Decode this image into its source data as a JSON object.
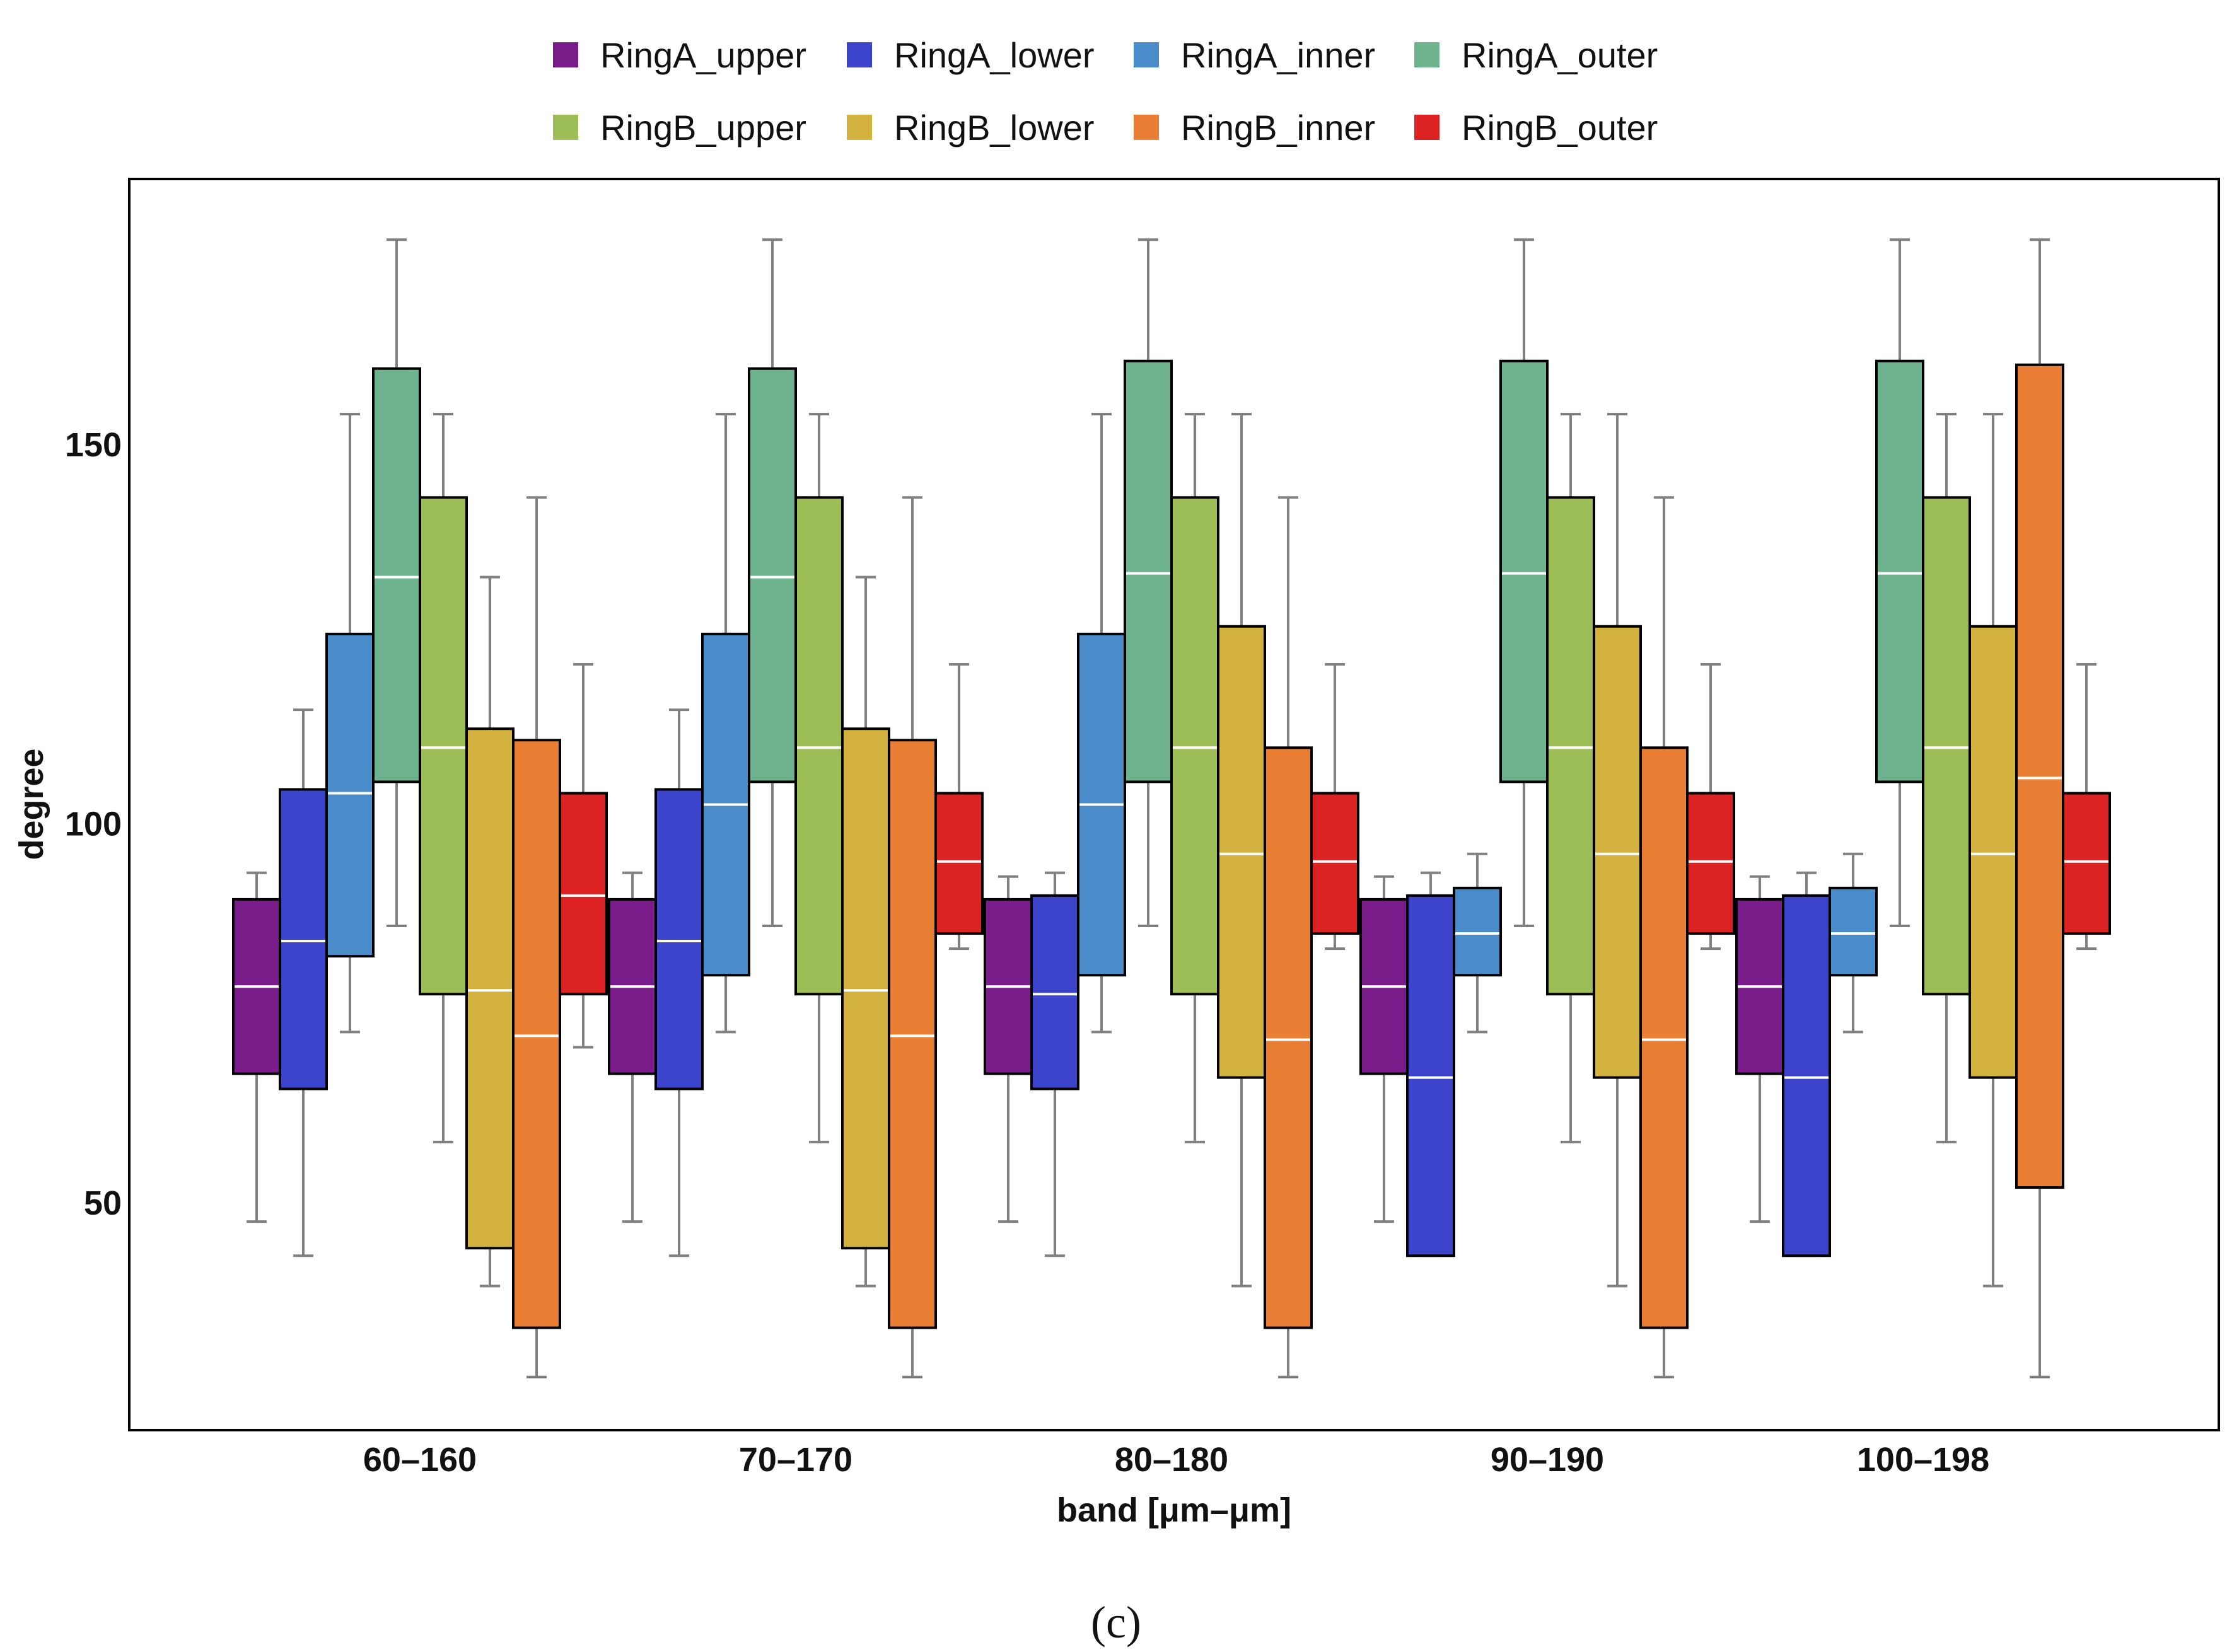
{
  "chart_data": {
    "type": "box",
    "title": "",
    "xlabel": "band [μm–μm]",
    "ylabel": "degree",
    "ylim": [
      20,
      185
    ],
    "yticks": [
      50,
      100,
      150
    ],
    "caption": "(c)",
    "legend_position": "top",
    "categories": [
      "60–160",
      "70–170",
      "80–180",
      "90–190",
      "100–198"
    ],
    "series": [
      {
        "name": "RingA_upper",
        "color": "#7a1d8a",
        "boxes": [
          {
            "min": 47.5,
            "q1": 67,
            "median": 78.5,
            "q3": 90,
            "max": 93.5
          },
          {
            "min": 47.5,
            "q1": 67,
            "median": 78.5,
            "q3": 90,
            "max": 93.5
          },
          {
            "min": 47.5,
            "q1": 67,
            "median": 78.5,
            "q3": 90,
            "max": 93
          },
          {
            "min": 47.5,
            "q1": 67,
            "median": 78.5,
            "q3": 90,
            "max": 93
          },
          {
            "min": 47.5,
            "q1": 67,
            "median": 78.5,
            "q3": 90,
            "max": 93
          }
        ]
      },
      {
        "name": "RingA_lower",
        "color": "#3c44cc",
        "boxes": [
          {
            "min": 43,
            "q1": 65,
            "median": 84.5,
            "q3": 104.5,
            "max": 115
          },
          {
            "min": 43,
            "q1": 65,
            "median": 84.5,
            "q3": 104.5,
            "max": 115
          },
          {
            "min": 43,
            "q1": 65,
            "median": 77.5,
            "q3": 90.5,
            "max": 93.5
          },
          {
            "min": 43,
            "q1": 43,
            "median": 66.5,
            "q3": 90.5,
            "max": 93.5
          },
          {
            "min": 43,
            "q1": 43,
            "median": 66.5,
            "q3": 90.5,
            "max": 93.5
          }
        ]
      },
      {
        "name": "RingA_inner",
        "color": "#4a8cca",
        "boxes": [
          {
            "min": 72.5,
            "q1": 82.5,
            "median": 104,
            "q3": 125,
            "max": 154
          },
          {
            "min": 72.5,
            "q1": 80,
            "median": 102.5,
            "q3": 125,
            "max": 154
          },
          {
            "min": 72.5,
            "q1": 80,
            "median": 102.5,
            "q3": 125,
            "max": 154
          },
          {
            "min": 72.5,
            "q1": 80,
            "median": 85.5,
            "q3": 91.5,
            "max": 96
          },
          {
            "min": 72.5,
            "q1": 80,
            "median": 85.5,
            "q3": 91.5,
            "max": 96
          }
        ]
      },
      {
        "name": "RingA_outer",
        "color": "#6cb38e",
        "boxes": [
          {
            "min": 86.5,
            "q1": 105.5,
            "median": 132.5,
            "q3": 160,
            "max": 177
          },
          {
            "min": 86.5,
            "q1": 105.5,
            "median": 132.5,
            "q3": 160,
            "max": 177
          },
          {
            "min": 86.5,
            "q1": 105.5,
            "median": 133,
            "q3": 161,
            "max": 177
          },
          {
            "min": 86.5,
            "q1": 105.5,
            "median": 133,
            "q3": 161,
            "max": 177
          },
          {
            "min": 86.5,
            "q1": 105.5,
            "median": 133,
            "q3": 161,
            "max": 177
          }
        ]
      },
      {
        "name": "RingB_upper",
        "color": "#9dbe57",
        "boxes": [
          {
            "min": 58,
            "q1": 77.5,
            "median": 110,
            "q3": 143,
            "max": 154
          },
          {
            "min": 58,
            "q1": 77.5,
            "median": 110,
            "q3": 143,
            "max": 154
          },
          {
            "min": 58,
            "q1": 77.5,
            "median": 110,
            "q3": 143,
            "max": 154
          },
          {
            "min": 58,
            "q1": 77.5,
            "median": 110,
            "q3": 143,
            "max": 154
          },
          {
            "min": 58,
            "q1": 77.5,
            "median": 110,
            "q3": 143,
            "max": 154
          }
        ]
      },
      {
        "name": "RingB_lower",
        "color": "#d4b23f",
        "boxes": [
          {
            "min": 39,
            "q1": 44,
            "median": 78,
            "q3": 112.5,
            "max": 132.5
          },
          {
            "min": 39,
            "q1": 44,
            "median": 78,
            "q3": 112.5,
            "max": 132.5
          },
          {
            "min": 39,
            "q1": 66.5,
            "median": 96,
            "q3": 126,
            "max": 154
          },
          {
            "min": 39,
            "q1": 66.5,
            "median": 96,
            "q3": 126,
            "max": 154
          },
          {
            "min": 39,
            "q1": 66.5,
            "median": 96,
            "q3": 126,
            "max": 154
          }
        ]
      },
      {
        "name": "RingB_inner",
        "color": "#e97f34",
        "boxes": [
          {
            "min": 27,
            "q1": 33.5,
            "median": 72,
            "q3": 111,
            "max": 143
          },
          {
            "min": 27,
            "q1": 33.5,
            "median": 72,
            "q3": 111,
            "max": 143
          },
          {
            "min": 27,
            "q1": 33.5,
            "median": 71.5,
            "q3": 110,
            "max": 143
          },
          {
            "min": 27,
            "q1": 33.5,
            "median": 71.5,
            "q3": 110,
            "max": 143
          },
          {
            "min": 27,
            "q1": 52,
            "median": 106,
            "q3": 160.5,
            "max": 177
          }
        ]
      },
      {
        "name": "RingB_outer",
        "color": "#dd2222",
        "boxes": [
          {
            "min": 70.5,
            "q1": 77.5,
            "median": 90.5,
            "q3": 104,
            "max": 121
          },
          {
            "min": 83.5,
            "q1": 85.5,
            "median": 95,
            "q3": 104,
            "max": 121
          },
          {
            "min": 83.5,
            "q1": 85.5,
            "median": 95,
            "q3": 104,
            "max": 121
          },
          {
            "min": 83.5,
            "q1": 85.5,
            "median": 95,
            "q3": 104,
            "max": 121
          },
          {
            "min": 83.5,
            "q1": 85.5,
            "median": 95,
            "q3": 104,
            "max": 121
          }
        ]
      }
    ]
  }
}
